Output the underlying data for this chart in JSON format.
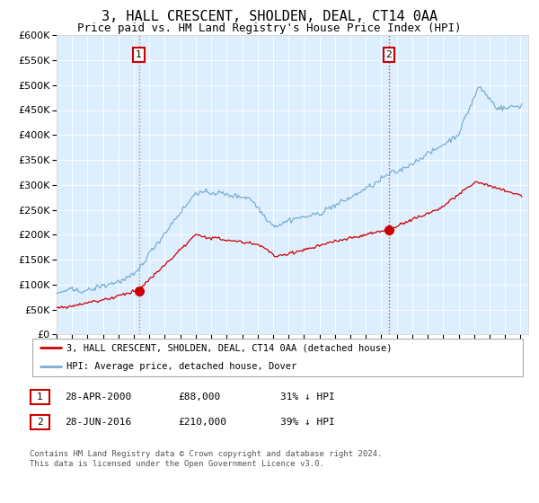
{
  "title": "3, HALL CRESCENT, SHOLDEN, DEAL, CT14 0AA",
  "subtitle": "Price paid vs. HM Land Registry's House Price Index (HPI)",
  "title_fontsize": 11,
  "subtitle_fontsize": 9,
  "background_color": "#ffffff",
  "plot_bg_color": "#ddeeff",
  "hpi_color": "#7aadd4",
  "price_color": "#cc0000",
  "ylim": [
    0,
    600000
  ],
  "yticks": [
    0,
    50000,
    100000,
    150000,
    200000,
    250000,
    300000,
    350000,
    400000,
    450000,
    500000,
    550000,
    600000
  ],
  "sale1_date": 2000.32,
  "sale1_price": 88000,
  "sale1_label": "1",
  "sale2_date": 2016.49,
  "sale2_price": 210000,
  "sale2_label": "2",
  "legend_entry1": "3, HALL CRESCENT, SHOLDEN, DEAL, CT14 0AA (detached house)",
  "legend_entry2": "HPI: Average price, detached house, Dover",
  "table_row1": [
    "1",
    "28-APR-2000",
    "£88,000",
    "31% ↓ HPI"
  ],
  "table_row2": [
    "2",
    "28-JUN-2016",
    "£210,000",
    "39% ↓ HPI"
  ],
  "footnote": "Contains HM Land Registry data © Crown copyright and database right 2024.\nThis data is licensed under the Open Government Licence v3.0.",
  "xmin": 1995,
  "xmax": 2025.5
}
